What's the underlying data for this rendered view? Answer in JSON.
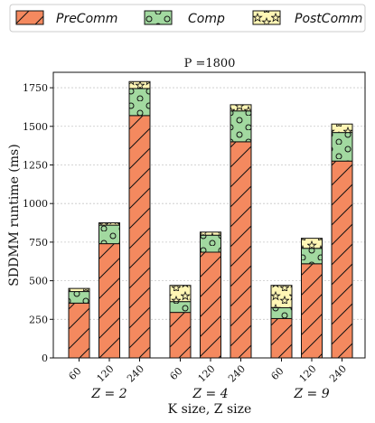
{
  "chart_data": {
    "type": "bar",
    "stacked": true,
    "title": "P =1800",
    "xlabel": "K size, Z size",
    "ylabel": "SDDMM runtime (ms)",
    "ylim": [
      0,
      1850
    ],
    "yticks": [
      0,
      250,
      500,
      750,
      1000,
      1250,
      1500,
      1750
    ],
    "grid": true,
    "legend_position": "top",
    "groups": [
      "Z = 2",
      "Z = 4",
      "Z = 9"
    ],
    "categories": [
      "60",
      "120",
      "240",
      "60",
      "120",
      "240",
      "60",
      "120",
      "240"
    ],
    "series": [
      {
        "name": "PreComm",
        "color": "#F4895F",
        "pattern": "diagonal-hatch",
        "values": [
          355,
          740,
          1570,
          295,
          685,
          1400,
          255,
          610,
          1275
        ]
      },
      {
        "name": "Comp",
        "color": "#A2D9A0",
        "pattern": "circles",
        "values": [
          75,
          120,
          175,
          70,
          110,
          200,
          70,
          100,
          185
        ]
      },
      {
        "name": "PostComm",
        "color": "#FFF6B5",
        "pattern": "stars",
        "values": [
          20,
          15,
          45,
          105,
          20,
          40,
          145,
          65,
          55
        ]
      }
    ]
  }
}
